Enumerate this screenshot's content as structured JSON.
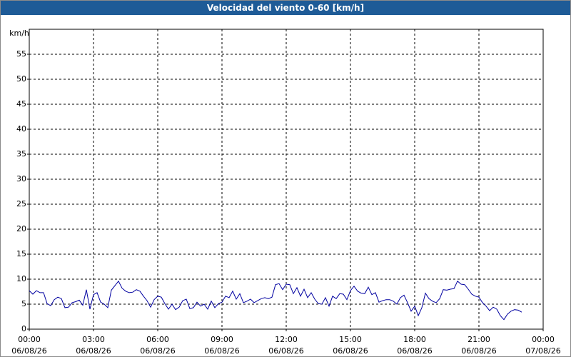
{
  "chart_data": {
    "type": "line",
    "title": "Velocidad del viento 0-60 [km/h]",
    "ylabel": "km/h",
    "color": "#0000a0",
    "grid": true,
    "xlim": [
      0,
      1440
    ],
    "ylim": [
      0,
      60
    ],
    "xticks": [
      {
        "value": 0,
        "label": "00:00 06/08/26"
      },
      {
        "value": 180,
        "label": "03:00 06/08/26"
      },
      {
        "value": 360,
        "label": "06:00 06/08/26"
      },
      {
        "value": 540,
        "label": "09:00 06/08/26"
      },
      {
        "value": 720,
        "label": "12:00 06/08/26"
      },
      {
        "value": 900,
        "label": "15:00 06/08/26"
      },
      {
        "value": 1080,
        "label": "18:00 06/08/26"
      },
      {
        "value": 1260,
        "label": "21:00 06/08/26"
      },
      {
        "value": 1440,
        "label": "00:00 07/08/26"
      }
    ],
    "yticks": [
      0,
      5,
      10,
      15,
      20,
      25,
      30,
      35,
      40,
      45,
      50,
      55
    ],
    "x": [
      0,
      10,
      20,
      30,
      40,
      50,
      60,
      70,
      80,
      90,
      100,
      110,
      120,
      130,
      140,
      150,
      160,
      170,
      180,
      190,
      200,
      210,
      220,
      230,
      240,
      250,
      260,
      270,
      280,
      290,
      300,
      310,
      320,
      330,
      340,
      350,
      360,
      370,
      380,
      390,
      400,
      410,
      420,
      430,
      440,
      450,
      460,
      470,
      480,
      490,
      500,
      510,
      520,
      530,
      540,
      550,
      560,
      570,
      580,
      590,
      600,
      610,
      620,
      630,
      640,
      650,
      660,
      670,
      680,
      690,
      700,
      710,
      720,
      730,
      740,
      750,
      760,
      770,
      780,
      790,
      800,
      810,
      820,
      830,
      840,
      850,
      860,
      870,
      880,
      890,
      900,
      910,
      920,
      930,
      940,
      950,
      960,
      970,
      980,
      990,
      1000,
      1010,
      1020,
      1030,
      1040,
      1050,
      1060,
      1070,
      1080,
      1090,
      1100,
      1110,
      1120,
      1130,
      1140,
      1150,
      1160,
      1170,
      1180,
      1190,
      1200,
      1210,
      1220,
      1230,
      1240,
      1250,
      1260,
      1270,
      1280,
      1290,
      1300,
      1310,
      1320,
      1330,
      1340,
      1350,
      1360,
      1370,
      1380
    ],
    "values": [
      7.7,
      7.0,
      7.7,
      7.3,
      7.3,
      5.1,
      4.7,
      5.9,
      6.4,
      6.1,
      4.3,
      4.4,
      5.3,
      5.5,
      5.8,
      4.8,
      7.9,
      4.0,
      6.9,
      7.3,
      5.4,
      5.0,
      4.3,
      7.8,
      8.7,
      9.6,
      8.2,
      7.6,
      7.3,
      7.4,
      7.9,
      7.6,
      6.6,
      5.7,
      4.4,
      5.9,
      6.6,
      6.4,
      5.1,
      4.0,
      5.0,
      3.9,
      4.4,
      5.7,
      6.0,
      4.1,
      4.3,
      5.4,
      4.6,
      5.0,
      4.0,
      5.6,
      4.3,
      5.1,
      5.4,
      6.6,
      6.3,
      7.6,
      6.0,
      7.1,
      5.3,
      5.6,
      6.0,
      5.3,
      5.7,
      6.1,
      6.3,
      6.1,
      6.4,
      8.9,
      9.1,
      7.9,
      9.0,
      8.9,
      7.1,
      8.3,
      6.6,
      8.0,
      6.3,
      7.3,
      6.0,
      5.1,
      5.0,
      6.3,
      4.6,
      6.6,
      6.1,
      7.1,
      7.0,
      5.9,
      7.7,
      8.6,
      7.6,
      7.2,
      7.1,
      8.4,
      6.9,
      7.3,
      5.4,
      5.7,
      5.9,
      5.9,
      5.6,
      5.0,
      6.3,
      6.8,
      5.3,
      3.6,
      4.6,
      2.7,
      4.3,
      7.2,
      6.1,
      5.6,
      5.3,
      6.1,
      7.9,
      7.8,
      8.0,
      8.1,
      9.6,
      9.0,
      8.9,
      8.0,
      7.0,
      6.6,
      6.4,
      5.3,
      4.6,
      3.7,
      4.4,
      4.0,
      2.7,
      1.9,
      3.0,
      3.6,
      3.9,
      3.8,
      3.4
    ]
  }
}
